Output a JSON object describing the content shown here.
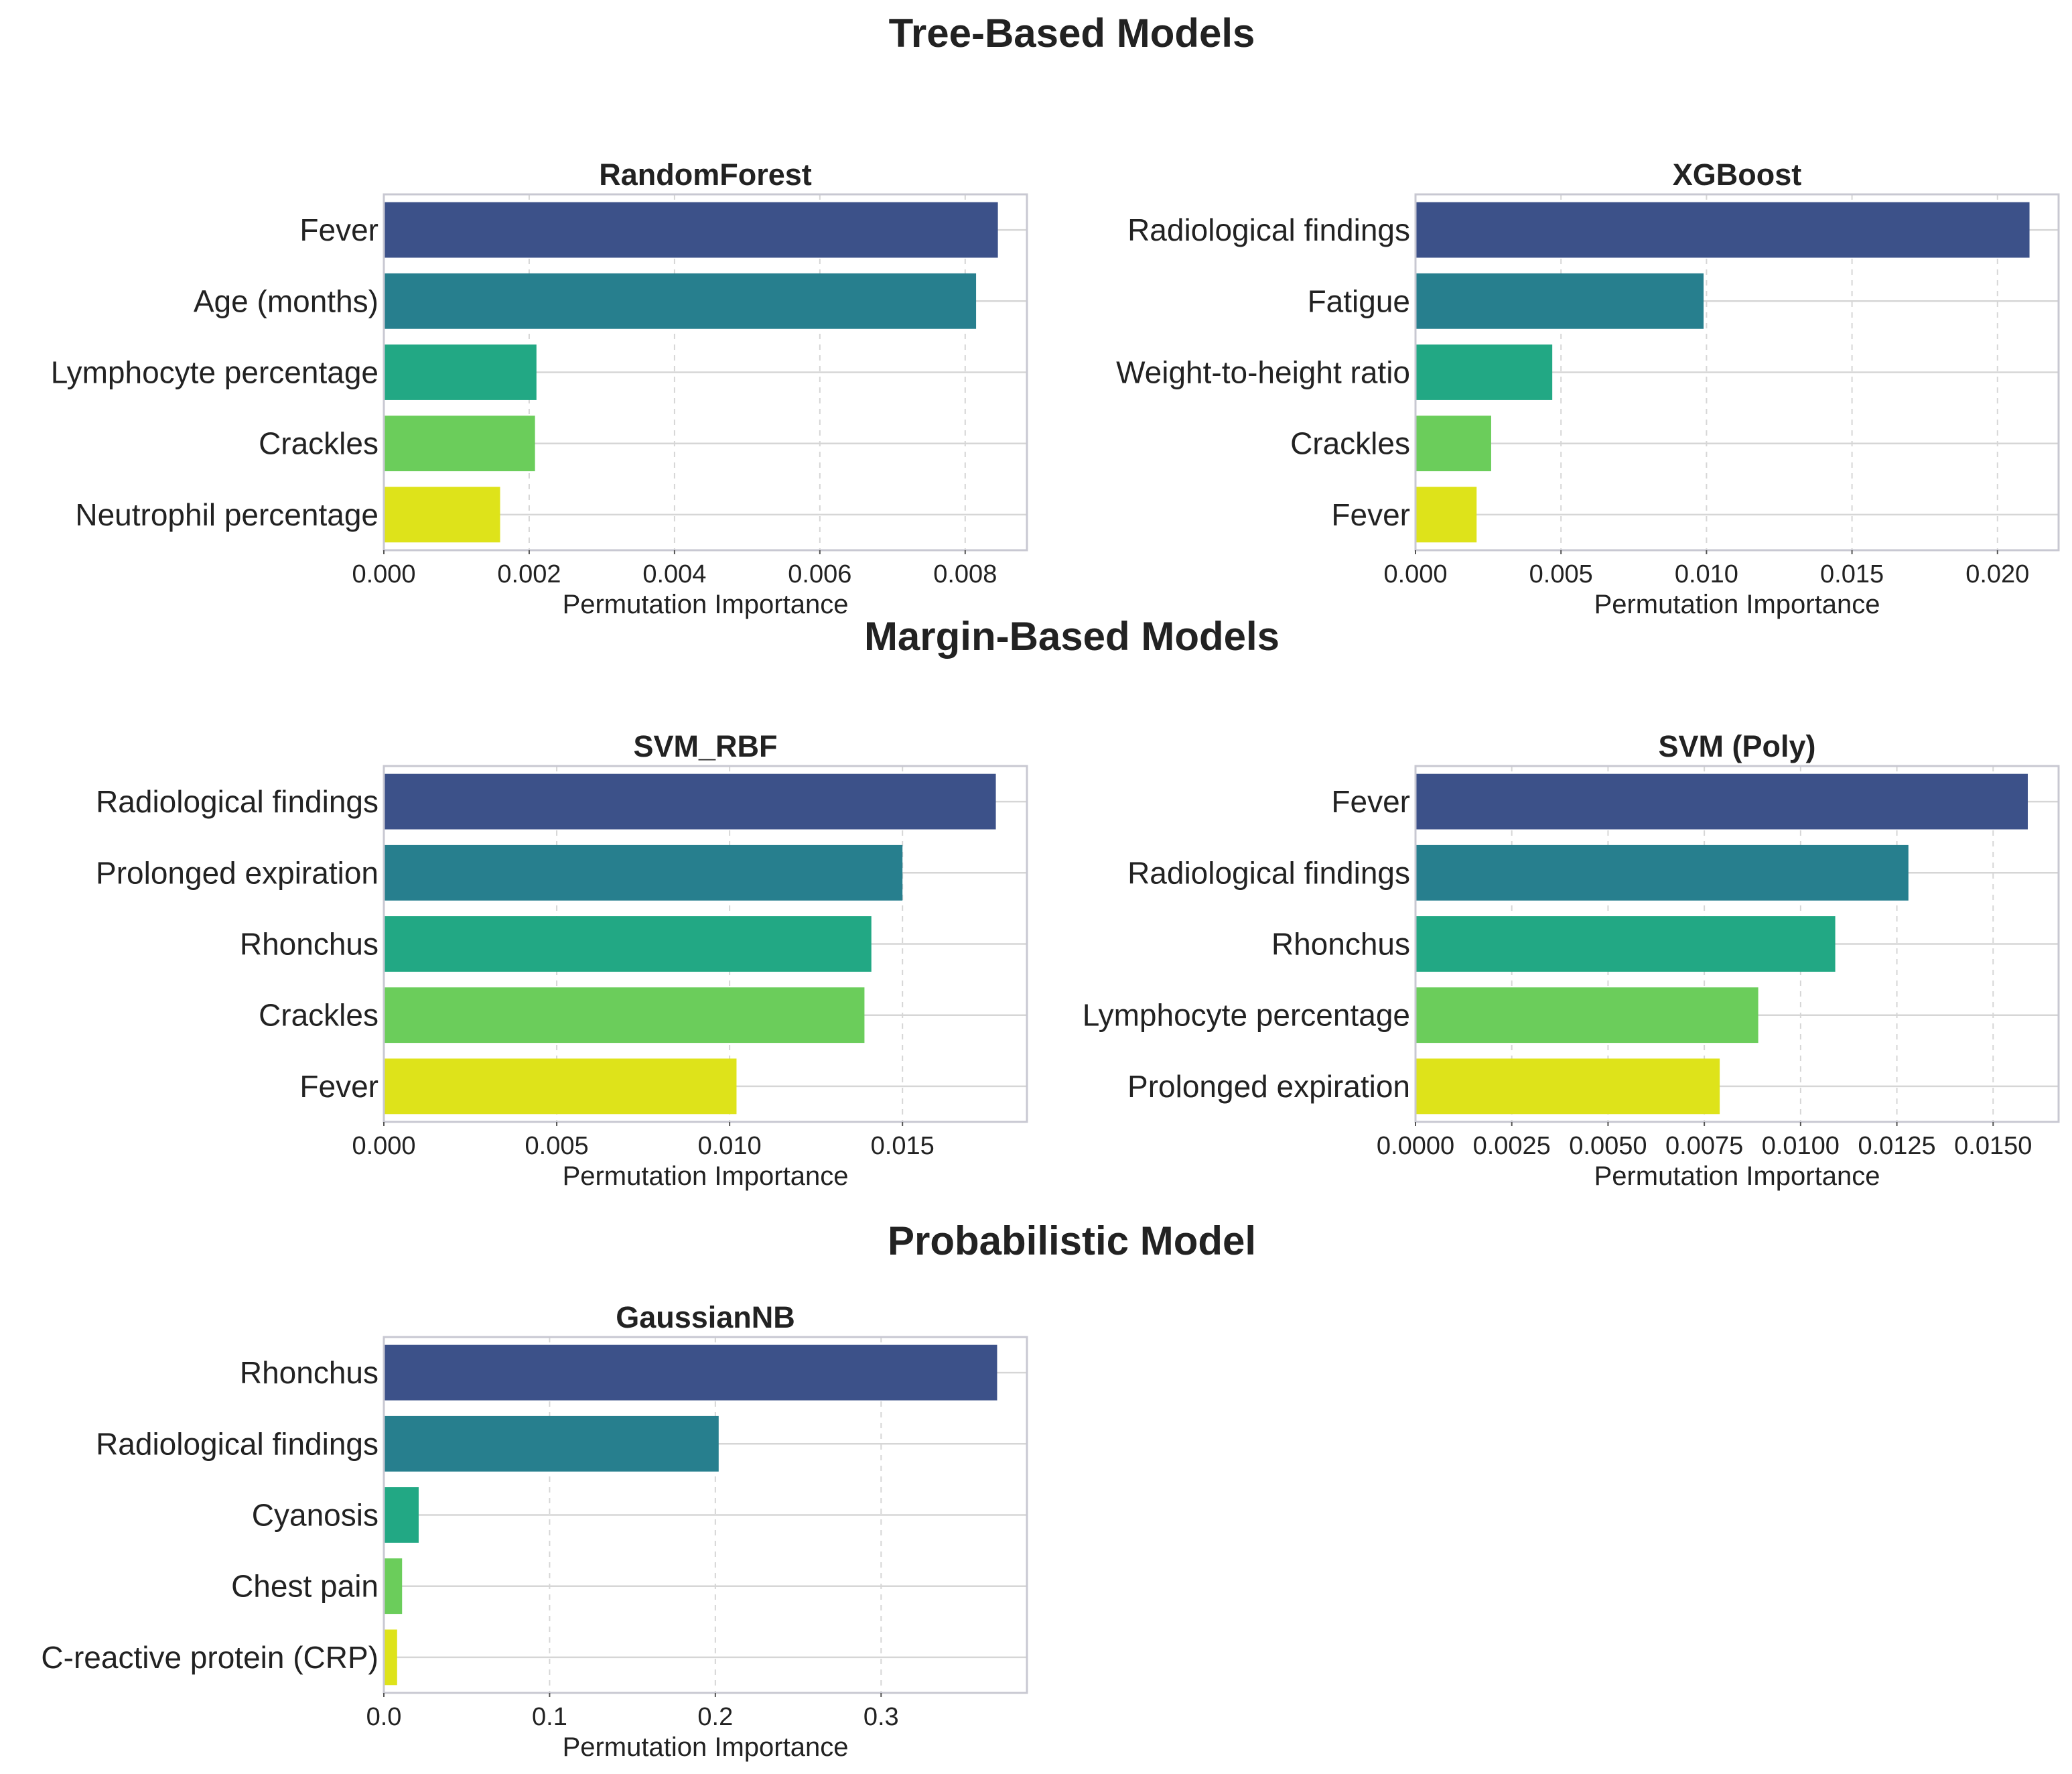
{
  "sections": [
    {
      "title": "Tree-Based Models"
    },
    {
      "title": "Margin-Based Models"
    },
    {
      "title": "Probabilistic Model"
    }
  ],
  "colors": [
    "#3c5189",
    "#277f8e",
    "#22a884",
    "#6bcd5b",
    "#dee31a"
  ],
  "chart_data": [
    {
      "type": "bar",
      "orientation": "horizontal",
      "section": "Tree-Based Models",
      "title": "RandomForest",
      "xlabel": "Permutation Importance",
      "categories": [
        "Fever",
        "Age (months)",
        "Lymphocyte percentage",
        "Crackles",
        "Neutrophil percentage"
      ],
      "values": [
        0.00845,
        0.00815,
        0.0021,
        0.00208,
        0.0016
      ],
      "xlim": [
        0,
        0.00885
      ],
      "xticks": [
        0,
        0.002,
        0.004,
        0.006,
        0.008
      ],
      "xtick_labels": [
        "0.000",
        "0.002",
        "0.004",
        "0.006",
        "0.008"
      ],
      "grid": true
    },
    {
      "type": "bar",
      "orientation": "horizontal",
      "section": "Tree-Based Models",
      "title": "XGBoost",
      "xlabel": "Permutation Importance",
      "categories": [
        "Radiological findings",
        "Fatigue",
        "Weight-to-height ratio",
        "Crackles",
        "Fever"
      ],
      "values": [
        0.0211,
        0.0099,
        0.0047,
        0.0026,
        0.0021
      ],
      "xlim": [
        0,
        0.0221
      ],
      "xticks": [
        0,
        0.005,
        0.01,
        0.015,
        0.02
      ],
      "xtick_labels": [
        "0.000",
        "0.005",
        "0.010",
        "0.015",
        "0.020"
      ],
      "grid": true
    },
    {
      "type": "bar",
      "orientation": "horizontal",
      "section": "Margin-Based Models",
      "title": "SVM_RBF",
      "xlabel": "Permutation Importance",
      "categories": [
        "Radiological findings",
        "Prolonged expiration",
        "Rhonchus",
        "Crackles",
        "Fever"
      ],
      "values": [
        0.0177,
        0.015,
        0.0141,
        0.0139,
        0.0102
      ],
      "xlim": [
        0,
        0.0186
      ],
      "xticks": [
        0,
        0.005,
        0.01,
        0.015
      ],
      "xtick_labels": [
        "0.000",
        "0.005",
        "0.010",
        "0.015"
      ],
      "grid": true
    },
    {
      "type": "bar",
      "orientation": "horizontal",
      "section": "Margin-Based Models",
      "title": "SVM (Poly)",
      "xlabel": "Permutation Importance",
      "categories": [
        "Fever",
        "Radiological findings",
        "Rhonchus",
        "Lymphocyte percentage",
        "Prolonged expiration"
      ],
      "values": [
        0.0159,
        0.0128,
        0.0109,
        0.0089,
        0.0079
      ],
      "xlim": [
        0,
        0.0167
      ],
      "xticks": [
        0,
        0.0025,
        0.005,
        0.0075,
        0.01,
        0.0125,
        0.015
      ],
      "xtick_labels": [
        "0.0000",
        "0.0025",
        "0.0050",
        "0.0075",
        "0.0100",
        "0.0125",
        "0.0150"
      ],
      "grid": true
    },
    {
      "type": "bar",
      "orientation": "horizontal",
      "section": "Probabilistic Model",
      "title": "GaussianNB",
      "xlabel": "Permutation Importance",
      "categories": [
        "Rhonchus",
        "Radiological findings",
        "Cyanosis",
        "Chest pain",
        "C-reactive protein (CRP)"
      ],
      "values": [
        0.37,
        0.202,
        0.021,
        0.011,
        0.008
      ],
      "xlim": [
        0,
        0.388
      ],
      "xticks": [
        0,
        0.1,
        0.2,
        0.3
      ],
      "xtick_labels": [
        "0.0",
        "0.1",
        "0.2",
        "0.3"
      ],
      "grid": true
    }
  ]
}
